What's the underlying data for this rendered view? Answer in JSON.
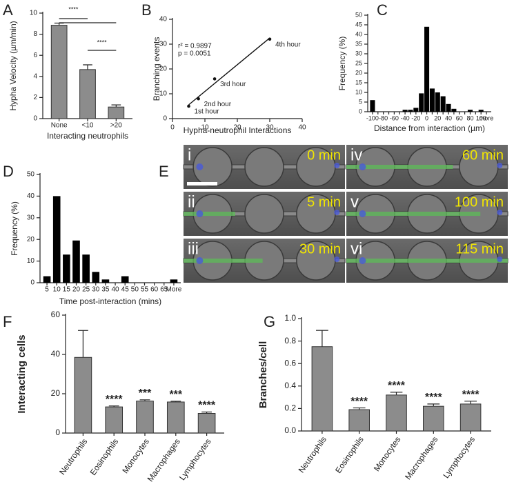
{
  "chart_data": [
    {
      "type": "bar",
      "panel": "A",
      "ylabel": "Hypha Velocity (µm/min)",
      "xlabel": "Interacting neutrophils",
      "categories": [
        "None",
        "<10",
        ">20"
      ],
      "values": [
        8.85,
        4.65,
        1.1
      ],
      "errors": [
        0.2,
        0.45,
        0.2
      ],
      "color": "#8c8c8c",
      "ylim": [
        0,
        10
      ],
      "yticks": [
        0,
        2,
        4,
        6,
        8,
        10
      ],
      "annotations": [
        "****",
        "****"
      ]
    },
    {
      "type": "scatter",
      "panel": "B",
      "ylabel": "Branching events",
      "xlabel": "Hypha-neutrophil Interactions",
      "x": [
        5,
        8,
        13,
        30
      ],
      "values": [
        5,
        8,
        16,
        32
      ],
      "point_labels": [
        "1st hour",
        "2nd hour",
        "3rd hour",
        "4th hour"
      ],
      "color": "#111111",
      "xlim": [
        0,
        40
      ],
      "xticks": [
        0,
        10,
        20,
        30,
        40
      ],
      "ylim": [
        0,
        40
      ],
      "yticks": [
        0,
        10,
        20,
        30,
        40
      ],
      "annotations": [
        "r² = 0.9897",
        "p = 0.0051"
      ]
    },
    {
      "type": "bar",
      "panel": "C",
      "ylabel": "Frequency (%)",
      "xlabel": "Distance from interaction (µm)",
      "categories": [
        "-100",
        null,
        "-80",
        null,
        "-60",
        null,
        "-40",
        null,
        "-20",
        null,
        "0",
        null,
        "20",
        null,
        "40",
        null,
        "60",
        null,
        "80",
        null,
        "100",
        "more"
      ],
      "values": [
        6,
        0,
        0,
        0,
        0,
        0,
        1,
        1,
        2,
        9.5,
        44,
        12,
        10,
        8,
        4,
        1.5,
        0,
        0,
        1,
        0,
        1,
        0
      ],
      "color": "#000000",
      "ylim": [
        0,
        50
      ],
      "yticks": [
        0,
        5,
        10,
        15,
        20,
        25,
        30,
        35,
        40,
        45,
        50
      ]
    },
    {
      "type": "bar",
      "panel": "D",
      "ylabel": "Frequency (%)",
      "xlabel": "Time post-interaction (mins)",
      "categories": [
        "5",
        "10",
        "15",
        "20",
        "25",
        "30",
        "35",
        "40",
        "45",
        "50",
        "55",
        "60",
        "65",
        "More"
      ],
      "values": [
        3,
        40,
        13,
        19.5,
        13,
        5,
        1.5,
        0,
        3,
        0,
        0,
        0,
        0,
        1.5
      ],
      "color": "#000000",
      "ylim": [
        0,
        50
      ],
      "yticks": [
        0,
        10,
        20,
        30,
        40,
        50
      ]
    },
    {
      "type": "bar",
      "panel": "F",
      "ylabel": "Interacting cells",
      "categories": [
        "Neutrophils",
        "Eosinophils",
        "Monocytes",
        "Macrophages",
        "Lymphocytes"
      ],
      "values": [
        38.5,
        13.3,
        16.3,
        15.8,
        10
      ],
      "errors": [
        13.7,
        0.5,
        0.6,
        0.4,
        0.7
      ],
      "annotations": [
        null,
        "****",
        "***",
        "***",
        "****"
      ],
      "color": "#8c8c8c",
      "ylim": [
        0,
        60
      ],
      "yticks": [
        0,
        20,
        40,
        60
      ]
    },
    {
      "type": "bar",
      "panel": "G",
      "ylabel": "Branches/cell",
      "categories": [
        "Neutrophils",
        "Eosinophils",
        "Monocytes",
        "Macrophages",
        "Lymphocytes"
      ],
      "values": [
        0.75,
        0.19,
        0.32,
        0.22,
        0.24
      ],
      "errors": [
        0.145,
        0.015,
        0.025,
        0.02,
        0.025
      ],
      "annotations": [
        null,
        "****",
        "****",
        "****",
        "****"
      ],
      "color": "#8c8c8c",
      "ylim": [
        0,
        1.0
      ],
      "yticks": [
        {
          "value": 0,
          "label": "0.0"
        },
        {
          "value": 0.2,
          "label": "0.2"
        },
        {
          "value": 0.4,
          "label": "0.4"
        },
        {
          "value": 0.6,
          "label": "0.6"
        },
        {
          "value": 0.8,
          "label": "0.8"
        },
        {
          "value": 1.0,
          "label": "1.0"
        }
      ]
    }
  ],
  "micrographs": {
    "panel": "E",
    "frames": [
      {
        "label": "i",
        "time": "0 min"
      },
      {
        "label": "ii",
        "time": "5 min"
      },
      {
        "label": "iii",
        "time": "30 min"
      },
      {
        "label": "iv",
        "time": "60 min"
      },
      {
        "label": "v",
        "time": "100 min"
      },
      {
        "label": "vi",
        "time": "115 min"
      }
    ]
  }
}
